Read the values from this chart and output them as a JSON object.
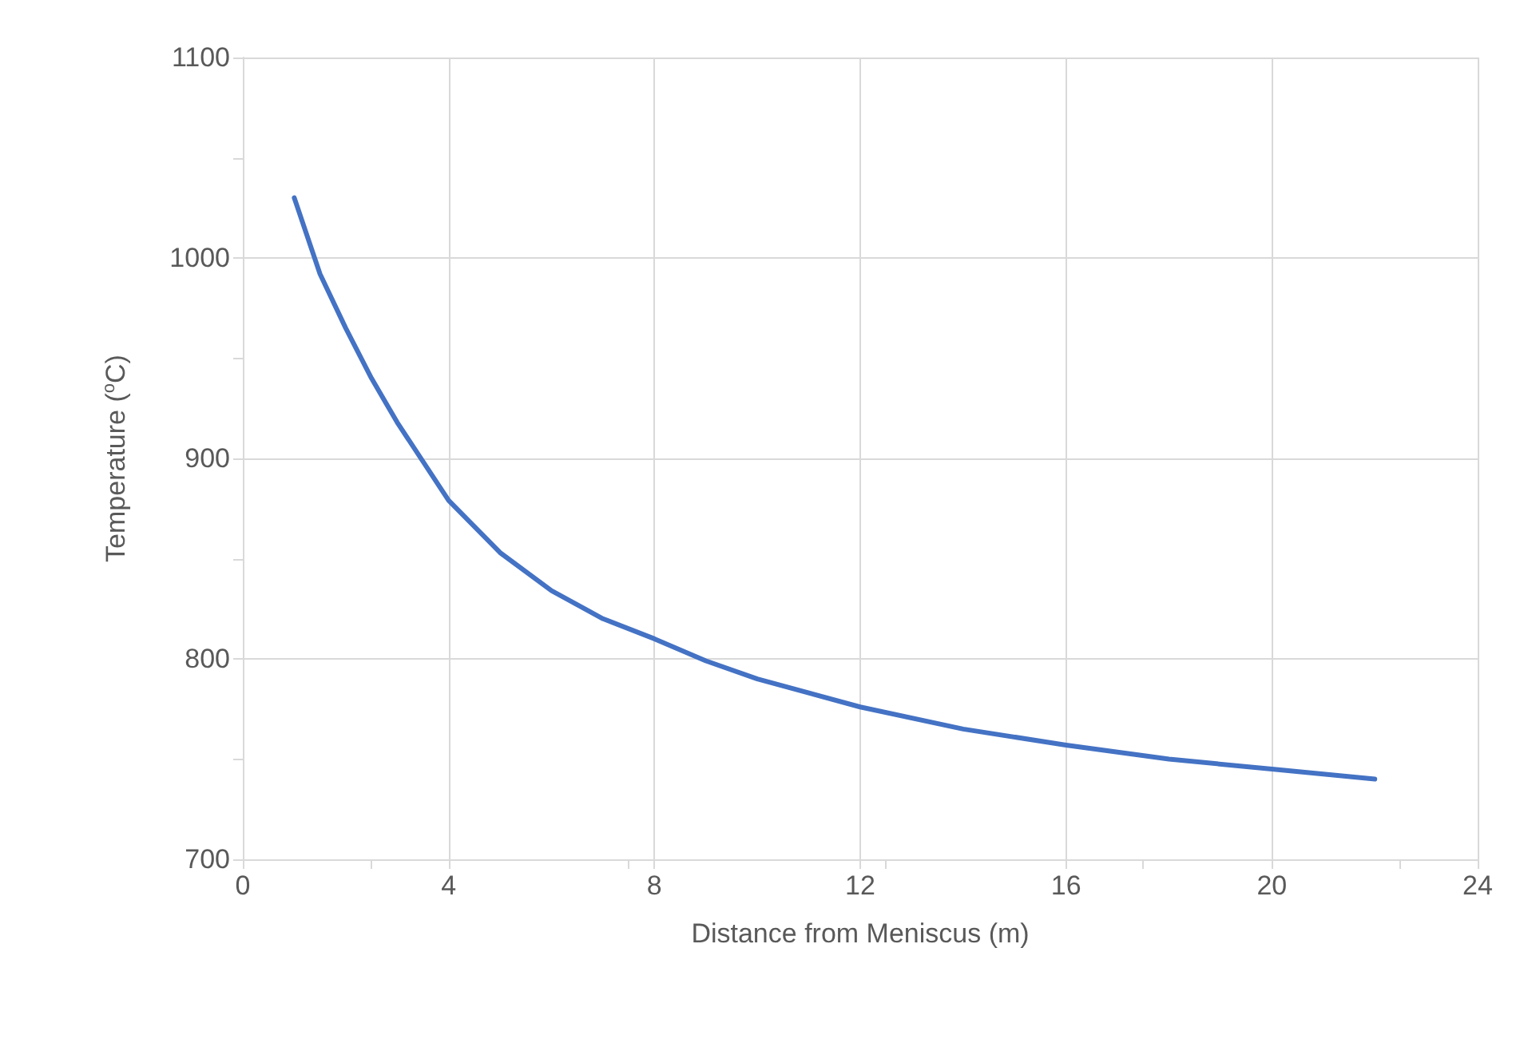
{
  "chart_data": {
    "type": "line",
    "xlabel": "Distance from Meniscus (m)",
    "ylabel": "Temperature ($^{o}$C)",
    "x": [
      1,
      1.5,
      2,
      2.5,
      3,
      4,
      5,
      6,
      7,
      8,
      9,
      10,
      12,
      14,
      16,
      18,
      20,
      22
    ],
    "series": [
      {
        "color": "#4472c4",
        "values": [
          1030,
          992,
          965,
          940,
          918,
          879,
          853,
          834,
          820,
          810,
          799,
          790,
          776,
          765,
          757,
          750,
          745,
          740
        ]
      }
    ],
    "xlim": [
      0,
      24
    ],
    "xticks": [
      0,
      4,
      8,
      12,
      16,
      20,
      24
    ],
    "ylim": [
      700,
      1100
    ],
    "yticks": [
      700,
      800,
      900,
      1000,
      1100
    ],
    "grid": true,
    "marker": "none",
    "line_style": "solid"
  }
}
